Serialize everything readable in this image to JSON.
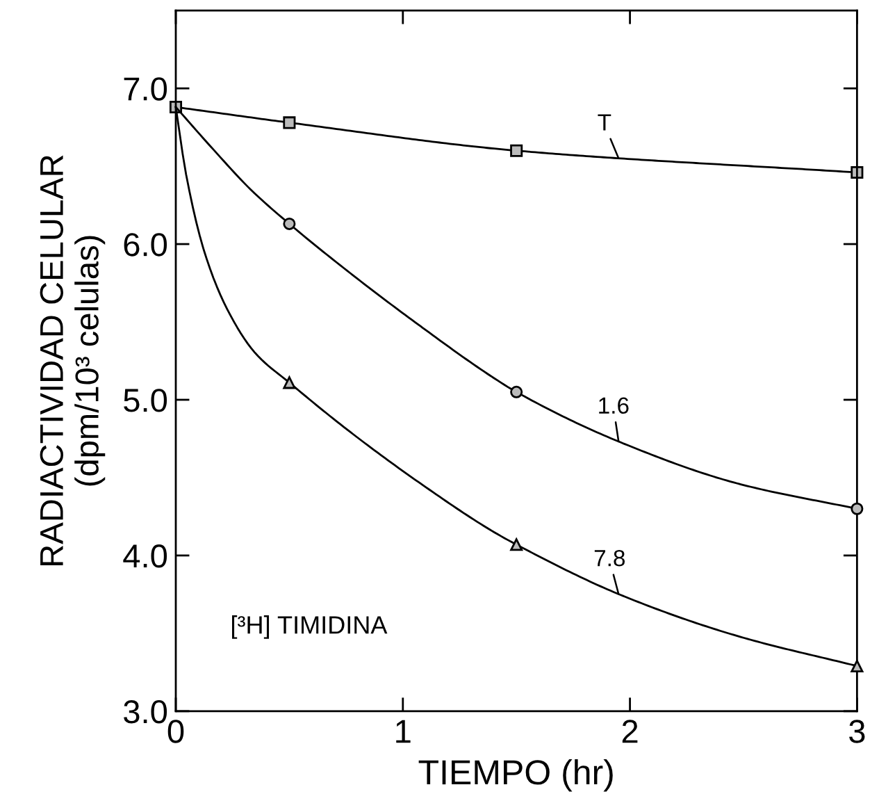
{
  "chart_data": {
    "type": "line",
    "xlabel": "TIEMPO (hr)",
    "ylabel": "RADIACTIVIDAD CELULAR\n(dpm/10³ celulas)",
    "x": [
      0,
      0.5,
      1.5,
      3
    ],
    "series": [
      {
        "name": "T",
        "color": "#000000",
        "marker": "square",
        "values": [
          6.88,
          6.78,
          6.6,
          6.46
        ]
      },
      {
        "type": "scatter",
        "color": "#000000",
        "marker": "circle",
        "x": [
          0.5,
          1.5,
          3
        ],
        "values": [
          6.13,
          5.05,
          4.3
        ]
      },
      {
        "type": "scatter",
        "color": "#000000",
        "marker": "triangle",
        "x": [
          0.5,
          1.5,
          3
        ],
        "values": [
          5.11,
          4.07,
          3.29
        ]
      },
      {
        "name": "1.6",
        "type": "line",
        "color": "#000000",
        "marker": "none",
        "x": [
          0,
          0.17,
          0.33,
          0.5,
          0.78,
          1.08,
          1.39,
          1.5,
          1.97,
          2.48,
          3
        ],
        "values": [
          6.88,
          6.6,
          6.35,
          6.13,
          5.8,
          5.47,
          5.15,
          5.05,
          4.72,
          4.46,
          4.3
        ]
      },
      {
        "name": "7.8",
        "type": "line",
        "color": "#000000",
        "marker": "none",
        "x": [
          0,
          0.045,
          0.126,
          0.227,
          0.35,
          0.5,
          0.78,
          1.08,
          1.39,
          1.5,
          1.97,
          2.48,
          3
        ],
        "values": [
          6.88,
          6.45,
          5.95,
          5.58,
          5.3,
          5.11,
          4.78,
          4.46,
          4.16,
          4.07,
          3.74,
          3.48,
          3.29
        ]
      }
    ],
    "xlim": [
      0,
      3
    ],
    "ylim": [
      3.0,
      7.5
    ],
    "xticks": [
      0,
      1,
      2,
      3
    ],
    "yticks": [
      {
        "value": 3,
        "label": "3.0"
      },
      {
        "value": 4,
        "label": "4.0"
      },
      {
        "value": 5,
        "label": "5.0"
      },
      {
        "value": 6,
        "label": "6.0"
      },
      {
        "value": 7,
        "label": "7.0"
      }
    ],
    "annotations": [
      "[³H] TIMIDINA"
    ],
    "grid": false,
    "legend": false,
    "line_style": "solid"
  }
}
